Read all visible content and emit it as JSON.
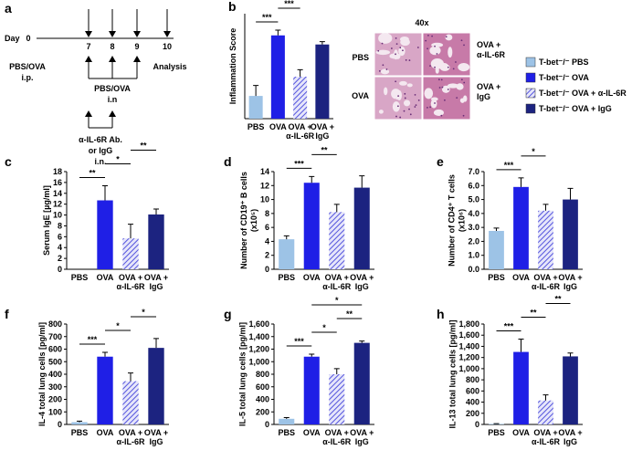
{
  "timeline": {
    "panel": "a",
    "day_label": "Day",
    "days": [
      "0",
      "7",
      "8",
      "9",
      "10"
    ],
    "start": [
      "PBS/OVA",
      "i.p."
    ],
    "end": "Analysis",
    "challenge": [
      "PBS/OVA",
      "i.n"
    ],
    "treatment": [
      "α-IL-6R Ab.",
      "or IgG",
      "i.n."
    ]
  },
  "histology": {
    "magnification": "40x",
    "rows": [
      "PBS",
      "OVA"
    ],
    "cols": [
      [
        "OVA +",
        "α-IL-6R"
      ],
      [
        "OVA +",
        "IgG"
      ]
    ]
  },
  "legend": [
    {
      "name": "T-bet⁻/⁻ PBS",
      "color": "#9dc3e6",
      "hatched": false
    },
    {
      "name": "T-bet⁻/⁻ OVA",
      "color": "#1f1fe6",
      "hatched": false
    },
    {
      "name": "T-bet⁻/⁻ OVA + α-IL-6R",
      "color": "#5555dd",
      "hatched": true
    },
    {
      "name": "T-bet⁻/⁻ OVA + IgG",
      "color": "#1c2380",
      "hatched": false
    }
  ],
  "chart_data": [
    {
      "type": "bar",
      "panel": "b",
      "ylabel": [
        "Inflammation Score"
      ],
      "categories": [
        [
          "PBS"
        ],
        [
          "OVA"
        ],
        [
          "OVA +",
          "α-IL-6R"
        ],
        [
          "OVA +",
          "IgG"
        ]
      ],
      "values": [
        0.65,
        2.38,
        1.2,
        2.12
      ],
      "errors": [
        0.3,
        0.15,
        0.2,
        0.08
      ],
      "ylim": [
        0,
        3
      ],
      "significance": [
        {
          "pair": [
            0,
            1
          ],
          "label": "***"
        },
        {
          "pair": [
            1,
            2
          ],
          "label": "***"
        },
        {
          "pair": [
            2,
            3
          ],
          "label": "**"
        }
      ]
    },
    {
      "type": "bar",
      "panel": "c",
      "ylabel": [
        "Serum IgE [µg/ml]"
      ],
      "categories": [
        [
          "PBS"
        ],
        [
          "OVA"
        ],
        [
          "OVA +",
          "α-IL-6R"
        ],
        [
          "OVA +",
          "IgG"
        ]
      ],
      "values": [
        0,
        12.7,
        5.7,
        10.1
      ],
      "errors": [
        0,
        2.7,
        2.6,
        1.0
      ],
      "ylim": [
        0,
        18
      ],
      "yticks": [
        0,
        2,
        4,
        6,
        8,
        10,
        12,
        14,
        16,
        18
      ],
      "significance": [
        {
          "pair": [
            0,
            1
          ],
          "label": "**"
        },
        {
          "pair": [
            1,
            2
          ],
          "label": "*"
        },
        {
          "pair": [
            2,
            3
          ],
          "label": "**"
        }
      ]
    },
    {
      "type": "bar",
      "panel": "d",
      "ylabel": [
        "Number of CD19⁺ B cells",
        "(x10⁵)"
      ],
      "categories": [
        [
          "PBS"
        ],
        [
          "OVA"
        ],
        [
          "OVA +",
          "α-IL-6R"
        ],
        [
          "OVA +",
          "IgG"
        ]
      ],
      "values": [
        4.3,
        12.4,
        8.2,
        11.7
      ],
      "errors": [
        0.5,
        0.9,
        1.1,
        1.7
      ],
      "ylim": [
        0,
        14
      ],
      "yticks": [
        0,
        2,
        4,
        6,
        8,
        10,
        12,
        14
      ],
      "significance": [
        {
          "pair": [
            0,
            1
          ],
          "label": "***"
        },
        {
          "pair": [
            1,
            2
          ],
          "label": "**"
        }
      ]
    },
    {
      "type": "bar",
      "panel": "e",
      "ylabel": [
        "Number of CD4⁺ T cells",
        "(x10⁶)"
      ],
      "categories": [
        [
          "PBS"
        ],
        [
          "OVA"
        ],
        [
          "OVA +",
          "α-IL-6R"
        ],
        [
          "OVA +",
          "IgG"
        ]
      ],
      "values": [
        2.75,
        5.9,
        4.2,
        5.0
      ],
      "errors": [
        0.2,
        0.65,
        0.45,
        0.8
      ],
      "ylim": [
        0,
        7
      ],
      "yticks": [
        {
          "value": 0,
          "label": "0.0"
        },
        {
          "value": 1,
          "label": "1.0"
        },
        {
          "value": 2,
          "label": "2.0"
        },
        {
          "value": 3,
          "label": "3.0"
        },
        {
          "value": 4,
          "label": "4.0"
        },
        {
          "value": 5,
          "label": "5.0"
        },
        {
          "value": 6,
          "label": "6.0"
        },
        {
          "value": 7,
          "label": "7.0"
        }
      ],
      "significance": [
        {
          "pair": [
            0,
            1
          ],
          "label": "***"
        },
        {
          "pair": [
            1,
            2
          ],
          "label": "*"
        }
      ]
    },
    {
      "type": "bar",
      "panel": "f",
      "ylabel": [
        "IL-4 total lung cells [pg/ml]"
      ],
      "categories": [
        [
          "PBS"
        ],
        [
          "OVA"
        ],
        [
          "OVA +",
          "α-IL-6R"
        ],
        [
          "OVA +",
          "IgG"
        ]
      ],
      "values": [
        18,
        540,
        345,
        610
      ],
      "errors": [
        8,
        35,
        65,
        75
      ],
      "ylim": [
        0,
        800
      ],
      "yticks": [
        0,
        100,
        200,
        300,
        400,
        500,
        600,
        700,
        800
      ],
      "significance": [
        {
          "pair": [
            0,
            1
          ],
          "label": "***"
        },
        {
          "pair": [
            1,
            2
          ],
          "label": "*"
        },
        {
          "pair": [
            2,
            3
          ],
          "label": "*"
        }
      ]
    },
    {
      "type": "bar",
      "panel": "g",
      "ylabel": [
        "IL-5 total lung cells [pg/ml]"
      ],
      "categories": [
        [
          "PBS"
        ],
        [
          "OVA"
        ],
        [
          "OVA +",
          "α-IL-6R"
        ],
        [
          "OVA +",
          "IgG"
        ]
      ],
      "values": [
        90,
        1080,
        800,
        1300
      ],
      "errors": [
        20,
        40,
        90,
        30
      ],
      "ylim": [
        0,
        1600
      ],
      "yticks": [
        0,
        200,
        400,
        600,
        800,
        {
          "value": 1000,
          "label": "1,000"
        },
        {
          "value": 1200,
          "label": "1,200"
        },
        {
          "value": 1400,
          "label": "1,400"
        },
        {
          "value": 1600,
          "label": "1,600"
        }
      ],
      "significance": [
        {
          "pair": [
            0,
            1
          ],
          "label": "***"
        },
        {
          "pair": [
            1,
            2
          ],
          "label": "*"
        },
        {
          "pair": [
            2,
            3
          ],
          "label": "**"
        },
        {
          "pair": [
            1,
            3
          ],
          "label": "*"
        }
      ]
    },
    {
      "type": "bar",
      "panel": "h",
      "ylabel": [
        "IL-13 total lung cells [pg/ml]"
      ],
      "categories": [
        [
          "PBS"
        ],
        [
          "OVA"
        ],
        [
          "OVA +",
          "α-IL-6R"
        ],
        [
          "OVA +",
          "IgG"
        ]
      ],
      "values": [
        10,
        1300,
        430,
        1220
      ],
      "errors": [
        5,
        230,
        100,
        60
      ],
      "ylim": [
        0,
        1800
      ],
      "yticks": [
        0,
        200,
        400,
        600,
        800,
        {
          "value": 1000,
          "label": "1,000"
        },
        {
          "value": 1200,
          "label": "1,200"
        },
        {
          "value": 1400,
          "label": "1,400"
        },
        {
          "value": 1600,
          "label": "1,600"
        },
        {
          "value": 1800,
          "label": "1,800"
        }
      ],
      "significance": [
        {
          "pair": [
            0,
            1
          ],
          "label": "***"
        },
        {
          "pair": [
            1,
            2
          ],
          "label": "**"
        },
        {
          "pair": [
            2,
            3
          ],
          "label": "**"
        }
      ]
    }
  ]
}
